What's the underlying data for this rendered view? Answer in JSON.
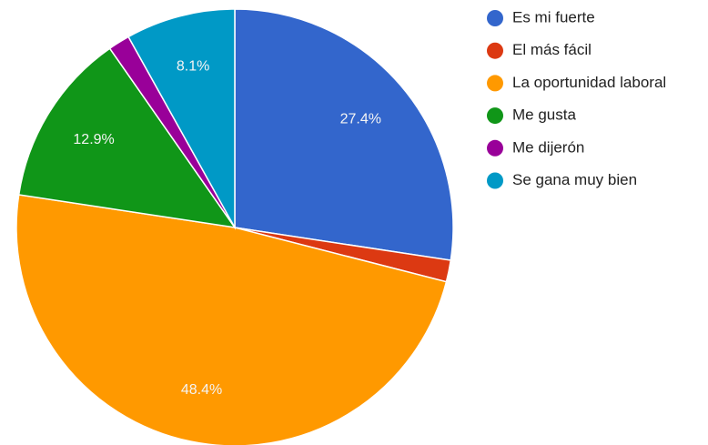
{
  "chart_data": {
    "type": "pie",
    "categories": [
      "Es mi fuerte",
      "El más fácil",
      "La oportunidad laboral",
      "Me gusta",
      "Me dijerón",
      "Se gana muy bien"
    ],
    "values": [
      27.4,
      1.6,
      48.4,
      12.9,
      1.6,
      8.1
    ],
    "value_labels": [
      "27.4%",
      null,
      "48.4%",
      "12.9%",
      null,
      "8.1%"
    ],
    "colors": [
      "#3366cc",
      "#dc3912",
      "#ff9900",
      "#109618",
      "#990099",
      "#0099c6"
    ],
    "legend": "right"
  }
}
